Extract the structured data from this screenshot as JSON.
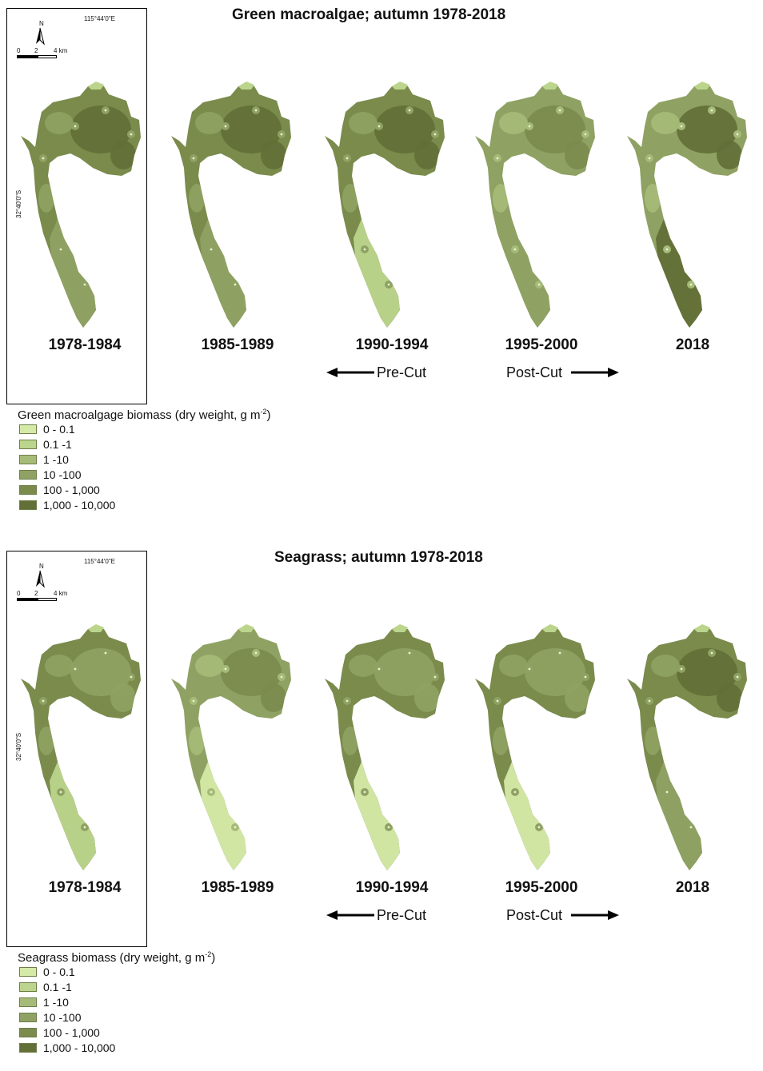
{
  "panels": [
    {
      "title": "Green macroalgae; autumn 1978-2018",
      "longitude_label": "115°44'0\"E",
      "latitude_label": "32°40'0\"S",
      "north_label": "N",
      "scale_labels": [
        "0",
        "2",
        "4 km"
      ],
      "maps": [
        {
          "year": "1978-1984",
          "fill_level": 4,
          "accent_level": 5,
          "south_level": 3
        },
        {
          "year": "1985-1989",
          "fill_level": 4,
          "accent_level": 5,
          "south_level": 3
        },
        {
          "year": "1990-1994",
          "fill_level": 4,
          "accent_level": 5,
          "south_level": 1
        },
        {
          "year": "1995-2000",
          "fill_level": 3,
          "accent_level": 4,
          "south_level": 3
        },
        {
          "year": "2018",
          "fill_level": 3,
          "accent_level": 5,
          "south_level": 5
        }
      ],
      "pre_cut_label": "Pre-Cut",
      "post_cut_label": "Post-Cut",
      "legend_title": "Green macroalgage biomass (dry weight, g m",
      "legend_title_sup": "-2",
      "legend_title_tail": ")",
      "legend": [
        "0 - 0.1",
        "0.1 -1",
        "1 -10",
        "10 -100",
        "100 - 1,000",
        "1,000 - 10,000"
      ]
    },
    {
      "title": "Seagrass; autumn 1978-2018",
      "longitude_label": "115°44'0\"E",
      "latitude_label": "32°40'0\"S",
      "north_label": "N",
      "scale_labels": [
        "0",
        "2",
        "4 km"
      ],
      "maps": [
        {
          "year": "1978-1984",
          "fill_level": 4,
          "accent_level": 3,
          "south_level": 1
        },
        {
          "year": "1985-1989",
          "fill_level": 3,
          "accent_level": 4,
          "south_level": 0
        },
        {
          "year": "1990-1994",
          "fill_level": 4,
          "accent_level": 3,
          "south_level": 0
        },
        {
          "year": "1995-2000",
          "fill_level": 4,
          "accent_level": 3,
          "south_level": 0
        },
        {
          "year": "2018",
          "fill_level": 4,
          "accent_level": 5,
          "south_level": 3
        }
      ],
      "pre_cut_label": "Pre-Cut",
      "post_cut_label": "Post-Cut",
      "legend_title": "Seagrass biomass (dry weight, g m",
      "legend_title_sup": "-2",
      "legend_title_tail": ")",
      "legend": [
        "0 - 0.1",
        "0.1 -1",
        "1 -10",
        "10 -100",
        "100 - 1,000",
        "1,000 - 10,000"
      ]
    }
  ],
  "palette": [
    "#d6eaa8",
    "#bcd58c",
    "#a6bb78",
    "#8fa263",
    "#7a8b4c",
    "#626f37"
  ]
}
